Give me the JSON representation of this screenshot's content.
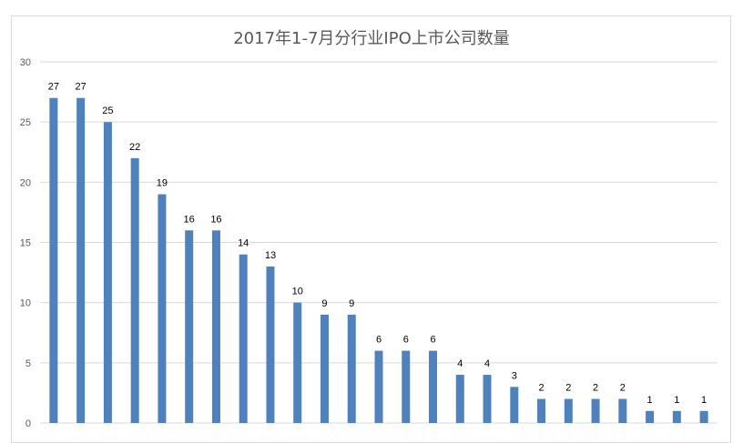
{
  "chart_data": {
    "type": "bar",
    "title": "2017年1-7月分行业IPO上市公司数量",
    "values": [
      27,
      27,
      25,
      22,
      19,
      16,
      16,
      14,
      13,
      10,
      9,
      9,
      6,
      6,
      6,
      4,
      4,
      3,
      2,
      2,
      2,
      2,
      1,
      1,
      1
    ],
    "ylim": [
      0,
      30
    ],
    "yticks": [
      0,
      5,
      10,
      15,
      20,
      25,
      30
    ],
    "grid": true,
    "data_labels": true,
    "bar_color": "#4f81bd",
    "legend": "none"
  }
}
